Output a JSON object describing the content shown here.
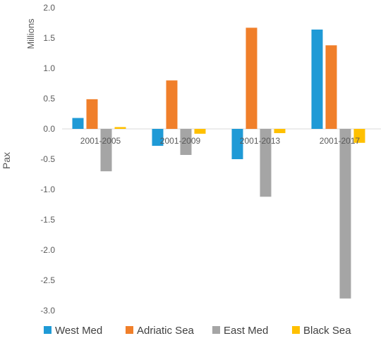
{
  "chart_data": {
    "type": "bar",
    "title": "",
    "ylabel": "Pax",
    "unit_label": "Millions",
    "xlabel": "",
    "categories": [
      "2001-2005",
      "2001-2009",
      "2001-2013",
      "2001-2017"
    ],
    "series": [
      {
        "name": "West Med",
        "color": "#1f9ad6",
        "values": [
          0.18,
          -0.28,
          -0.5,
          1.64
        ]
      },
      {
        "name": "Adriatic Sea",
        "color": "#f07f2a",
        "values": [
          0.49,
          0.8,
          1.67,
          1.38
        ]
      },
      {
        "name": "East Med",
        "color": "#a5a5a5",
        "values": [
          -0.7,
          -0.43,
          -1.12,
          -2.8
        ]
      },
      {
        "name": "Black Sea",
        "color": "#ffc000",
        "values": [
          0.03,
          -0.08,
          -0.07,
          -0.23
        ]
      }
    ],
    "ylim": [
      -3.0,
      2.0
    ],
    "yticks": [
      "2.0",
      "1.5",
      "1.0",
      "0.5",
      "0.0",
      "-0.5",
      "-1.0",
      "-1.5",
      "-2.0",
      "-2.5",
      "-3.0"
    ],
    "grid": false,
    "legend_position": "bottom"
  }
}
